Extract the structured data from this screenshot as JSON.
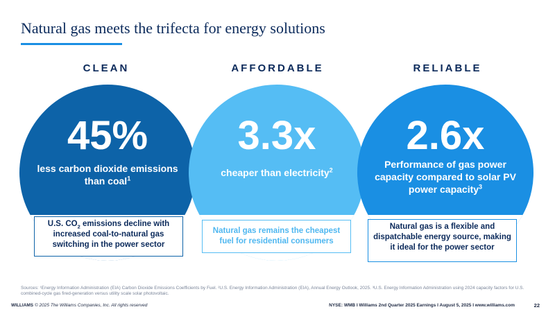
{
  "slide": {
    "title": "Natural gas meets the trifecta for energy solutions",
    "accent_color": "#1a8fe3",
    "page_number": "22"
  },
  "columns": [
    {
      "heading": "CLEAN",
      "color": "#0d63a8",
      "stat": "45%",
      "description": "less carbon dioxide emissions than coal",
      "footnote_ref": "1",
      "box_text_before": "U.S. CO",
      "box_subscript": "2",
      "box_text_after": " emissions decline with increased coal-to-natural gas switching in the power sector"
    },
    {
      "heading": "AFFORDABLE",
      "color": "#55bdf4",
      "stat": "3.3x",
      "description": "cheaper than electricity",
      "footnote_ref": "2",
      "box_text": "Natural gas remains the cheapest fuel for residential consumers"
    },
    {
      "heading": "RELIABLE",
      "color": "#1a8fe3",
      "stat": "2.6x",
      "description": "Performance of gas power capacity compared to solar PV power capacity",
      "footnote_ref": "3",
      "box_text": "Natural gas is a flexible and dispatchable energy source, making it ideal for the power sector"
    }
  ],
  "sources": "Sources: ¹Energy Information Administration (EIA) Carbon Dioxide Emissions Coefficients by Fuel. ²U.S. Energy Information Administration (EIA), Annual Energy Outlook, 2025. ³U.S. Energy Information Administration using 2024 capacity factors for U.S. combined-cycle gas fired-generation versus utility scale solar photovoltaic.",
  "footer": {
    "brand": "WILLIAMS",
    "copyright": "© 2025 The Williams Companies, Inc. All rights reserved",
    "right": "NYSE: WMB  I  Williams 2nd Quarter 2025 Earnings I  August 5, 2025  I  www.williams.com"
  }
}
